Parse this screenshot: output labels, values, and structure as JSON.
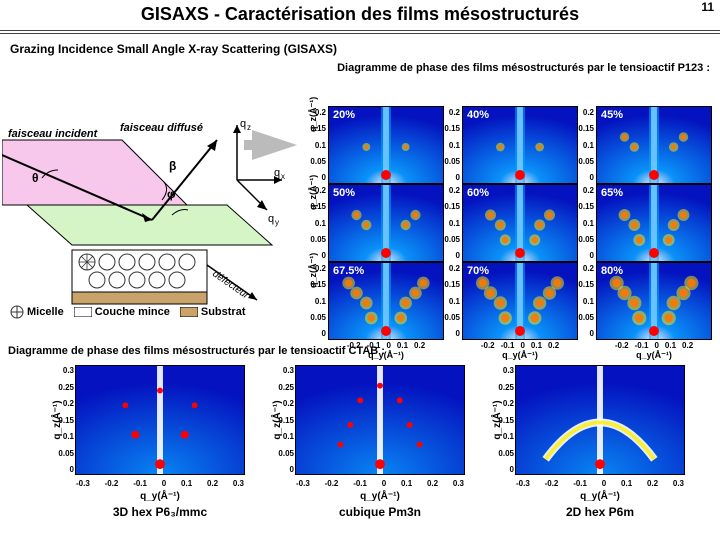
{
  "pageNumber": "11",
  "title": "GISAXS - Caractérisation des films mésostructurés",
  "subtitle": "Grazing Incidence Small Angle X-ray Scattering (GISAXS)",
  "captionP123": "Diagramme de phase des films mésostructurés par le tensioactif P123 :",
  "captionCTAB": "Diagramme de phase des films mésostructurés par le tensioactif CTAB :",
  "schematic": {
    "incident": "faisceau incident",
    "diffuse": "faisceau diffusé",
    "qz": "q",
    "qz_sub": "z",
    "qx": "q",
    "qx_sub": "x",
    "qy": "q",
    "qy_sub": "y",
    "theta": "θ",
    "beta": "β",
    "phi": "φ",
    "defect": "défecteur",
    "micelle": "Micelle",
    "substrat": "Substrat",
    "couche": "Couche mince",
    "colors": {
      "plane_incident": "#f7c7ec",
      "plane_sample": "#d5f5c7",
      "substrate": "#c9a36a",
      "thinfilm": "#ffffff",
      "micelle_stroke": "#333333",
      "arrow": "#000000"
    }
  },
  "p123": {
    "yticks": [
      "0.2",
      "0.15",
      "0.1",
      "0.05",
      "0"
    ],
    "xticks": [
      "-0.2",
      "-0.1",
      "0",
      "0.1",
      "0.2"
    ],
    "yAxisLabel": "q_z(Å⁻¹)",
    "xAxisLabel": "q_y(Å⁻¹)",
    "panels": [
      {
        "label": "20%",
        "color": "#fff"
      },
      {
        "label": "40%",
        "color": "#fff"
      },
      {
        "label": "45%",
        "color": "#fff"
      },
      {
        "label": "50%",
        "color": "#fff"
      },
      {
        "label": "60%",
        "color": "#fff"
      },
      {
        "label": "65%",
        "color": "#fff"
      },
      {
        "label": "67.5%",
        "color": "#fff"
      },
      {
        "label": "70%",
        "color": "#fff"
      },
      {
        "label": "80%",
        "color": "#fff"
      }
    ],
    "heatmap_colors": {
      "low": "#0412bf",
      "mid": "#0aa0ff",
      "high": "#ffffff",
      "peak": "#ff0000",
      "peak2": "#ffee00"
    }
  },
  "ctab": {
    "yticks": [
      "0.3",
      "0.25",
      "0.2",
      "0.15",
      "0.1",
      "0.05",
      "0"
    ],
    "xticks": [
      "-0.3",
      "-0.2",
      "-0.1",
      "0",
      "0.1",
      "0.2",
      "0.3"
    ],
    "yAxisLabel": "q_z(Å⁻¹)",
    "xAxisLabel": "q_y(Å⁻¹)",
    "panels": [
      {
        "name": "3D hex P6₃/mmc"
      },
      {
        "name": "cubique Pm3n"
      },
      {
        "name": "2D hex P6m"
      }
    ]
  }
}
